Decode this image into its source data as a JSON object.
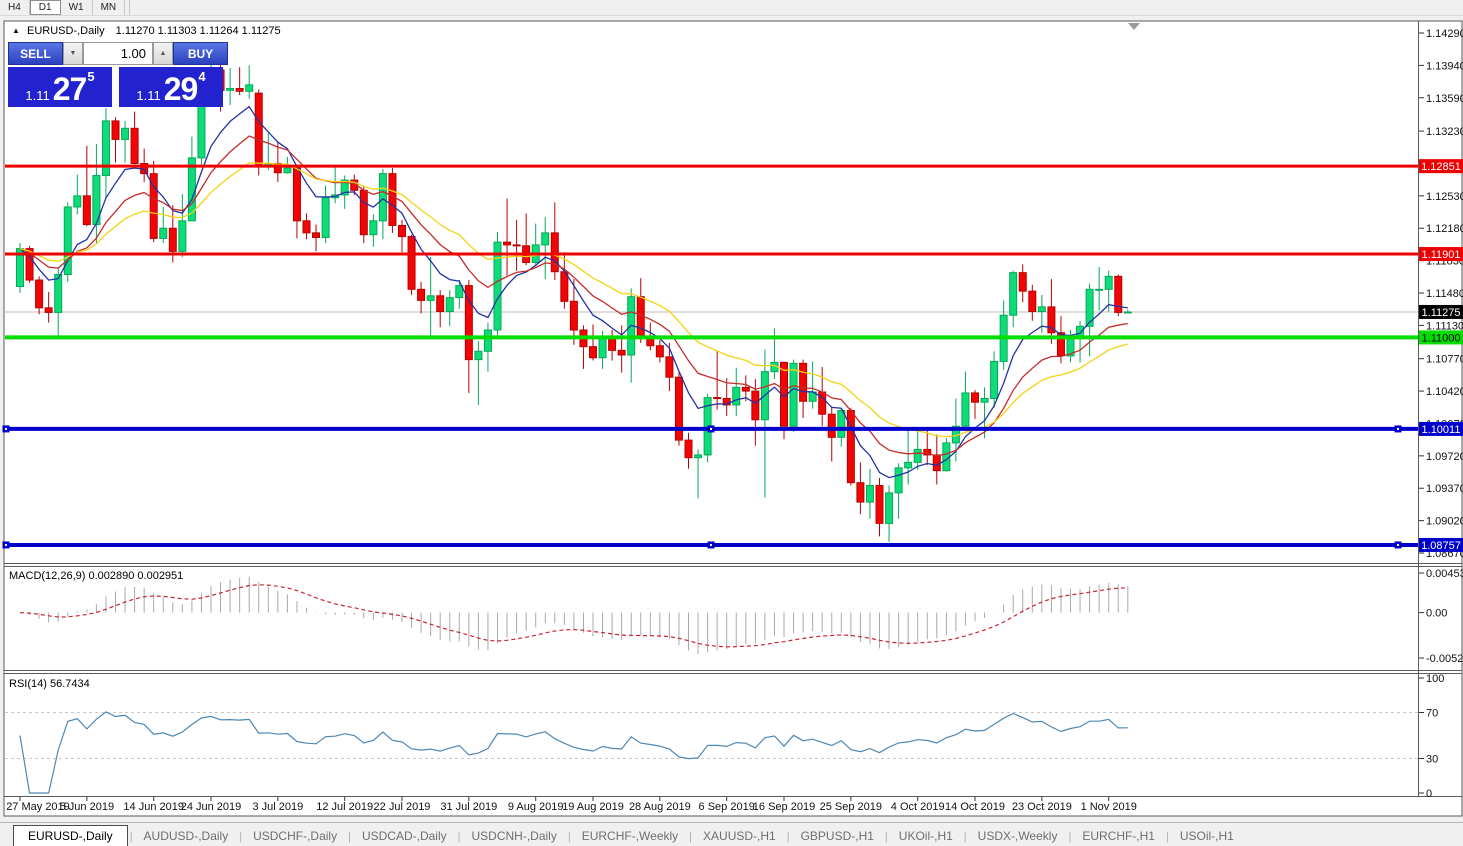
{
  "toolbar": {
    "buttons": [
      "H4",
      "D1",
      "W1",
      "MN"
    ],
    "active": "D1"
  },
  "chart": {
    "title_symbol": "EURUSD-,Daily",
    "title_ohlc": "1.11270 1.11303 1.11264 1.11275",
    "trade_widget": {
      "sell_label": "SELL",
      "buy_label": "BUY",
      "volume": "1.00",
      "sell_price_prefix": "1.11",
      "sell_price_big": "27",
      "sell_price_sup": "5",
      "buy_price_prefix": "1.11",
      "buy_price_big": "29",
      "buy_price_sup": "4"
    }
  },
  "icons": {
    "collapse": "▲",
    "spin_up": "▲",
    "spin_down": "▼",
    "tab_scroll_left": "◄",
    "tab_scroll_right": "►"
  },
  "chart_data": {
    "type": "candlestick",
    "symbol": "EURUSD",
    "timeframe": "Daily",
    "title": "EURUSD-,Daily",
    "colors": {
      "candle_up_fill": "#0edc78",
      "candle_up_stroke": "#05a858",
      "candle_dn_fill": "#f20505",
      "candle_dn_stroke": "#b80000",
      "ma_fast": "#2233a6",
      "ma_mid": "#c42b2b",
      "ma_slow": "#f5d312",
      "current_price_line": "#bdbdbd",
      "macd_histogram": "#a8a8a8",
      "macd_signal": "#cc2233",
      "rsi_line": "#4d87b5"
    },
    "y_axis_ticks": [
      {
        "label": "1.14290",
        "p": 1.1429
      },
      {
        "label": "1.13940",
        "p": 1.1394
      },
      {
        "label": "1.13590",
        "p": 1.1359
      },
      {
        "label": "1.13230",
        "p": 1.1323
      },
      {
        "label": "1.12530",
        "p": 1.1253
      },
      {
        "label": "1.12180",
        "p": 1.1218
      },
      {
        "label": "1.11830",
        "p": 1.1183
      },
      {
        "label": "1.11480",
        "p": 1.1148
      },
      {
        "label": "1.11130",
        "p": 1.1113
      },
      {
        "label": "1.10770",
        "p": 1.1077
      },
      {
        "label": "1.10420",
        "p": 1.1042
      },
      {
        "label": "1.10070",
        "p": 1.1007
      },
      {
        "label": "1.09720",
        "p": 1.0972
      },
      {
        "label": "1.09370",
        "p": 1.0937
      },
      {
        "label": "1.09020",
        "p": 1.0902
      },
      {
        "label": "1.08670",
        "p": 1.0867
      }
    ],
    "hlines": [
      {
        "price": 1.12851,
        "label": "1.12851",
        "color": "#ee0000",
        "width": 3,
        "selected": false
      },
      {
        "price": 1.11901,
        "label": "1.11901",
        "color": "#ee0000",
        "width": 3,
        "selected": false
      },
      {
        "price": 1.11,
        "label": "1.11000",
        "color": "#00dd00",
        "width": 4,
        "selected": false,
        "label_fg": "#000"
      },
      {
        "price": 1.10011,
        "label": "1.10011",
        "color": "#0000cc",
        "width": 4,
        "selected": true
      },
      {
        "price": 1.08757,
        "label": "1.08757",
        "color": "#0000cc",
        "width": 4,
        "selected": true
      }
    ],
    "current_price": {
      "label": "1.11275",
      "price": 1.11275
    },
    "x_ticks": [
      {
        "label": "27 May 2019",
        "i": 0
      },
      {
        "label": "5 Jun 2019",
        "i": 7
      },
      {
        "label": "14 Jun 2019",
        "i": 14
      },
      {
        "label": "24 Jun 2019",
        "i": 20
      },
      {
        "label": "3 Jul 2019",
        "i": 27
      },
      {
        "label": "12 Jul 2019",
        "i": 34
      },
      {
        "label": "22 Jul 2019",
        "i": 40
      },
      {
        "label": "31 Jul 2019",
        "i": 47
      },
      {
        "label": "9 Aug 2019",
        "i": 54
      },
      {
        "label": "19 Aug 2019",
        "i": 60
      },
      {
        "label": "28 Aug 2019",
        "i": 67
      },
      {
        "label": "6 Sep 2019",
        "i": 74
      },
      {
        "label": "16 Sep 2019",
        "i": 80
      },
      {
        "label": "25 Sep 2019",
        "i": 87
      },
      {
        "label": "4 Oct 2019",
        "i": 94
      },
      {
        "label": "14 Oct 2019",
        "i": 100
      },
      {
        "label": "23 Oct 2019",
        "i": 107
      },
      {
        "label": "1 Nov 2019",
        "i": 114
      }
    ],
    "candles": [
      [
        1.1155,
        1.1202,
        1.1148,
        1.1196
      ],
      [
        1.1196,
        1.1199,
        1.1159,
        1.1162
      ],
      [
        1.1162,
        1.1166,
        1.1125,
        1.1132
      ],
      [
        1.1132,
        1.1149,
        1.1116,
        1.1127
      ],
      [
        1.1127,
        1.1176,
        1.1101,
        1.1168
      ],
      [
        1.1168,
        1.1246,
        1.116,
        1.1241
      ],
      [
        1.1241,
        1.1276,
        1.1233,
        1.1253
      ],
      [
        1.1253,
        1.1307,
        1.122,
        1.1222
      ],
      [
        1.1222,
        1.1309,
        1.1201,
        1.1275
      ],
      [
        1.1275,
        1.1348,
        1.1251,
        1.1334
      ],
      [
        1.1334,
        1.1338,
        1.1289,
        1.1314
      ],
      [
        1.1314,
        1.1334,
        1.1289,
        1.1326
      ],
      [
        1.1326,
        1.1344,
        1.1282,
        1.1288
      ],
      [
        1.1288,
        1.1304,
        1.1268,
        1.1277
      ],
      [
        1.1277,
        1.1291,
        1.1203,
        1.1207
      ],
      [
        1.1207,
        1.1241,
        1.1202,
        1.1218
      ],
      [
        1.1218,
        1.1243,
        1.1181,
        1.1193
      ],
      [
        1.1193,
        1.1255,
        1.1187,
        1.1226
      ],
      [
        1.1226,
        1.1317,
        1.1226,
        1.1294
      ],
      [
        1.1294,
        1.1378,
        1.1287,
        1.1368
      ],
      [
        1.1368,
        1.1396,
        1.1362,
        1.1389
      ],
      [
        1.1389,
        1.1395,
        1.1344,
        1.1367
      ],
      [
        1.1367,
        1.1391,
        1.1351,
        1.1369
      ],
      [
        1.1369,
        1.1392,
        1.1362,
        1.1366
      ],
      [
        1.1366,
        1.1394,
        1.1358,
        1.1373
      ],
      [
        1.1364,
        1.1368,
        1.1275,
        1.1285
      ],
      [
        1.1285,
        1.1322,
        1.1281,
        1.1288
      ],
      [
        1.1288,
        1.1312,
        1.1268,
        1.1278
      ],
      [
        1.1278,
        1.1295,
        1.1277,
        1.1283
      ],
      [
        1.1283,
        1.1287,
        1.1207,
        1.1226
      ],
      [
        1.1226,
        1.1234,
        1.1206,
        1.1213
      ],
      [
        1.1213,
        1.1222,
        1.1193,
        1.1208
      ],
      [
        1.1208,
        1.1264,
        1.1202,
        1.1251
      ],
      [
        1.1251,
        1.1285,
        1.1245,
        1.1254
      ],
      [
        1.1254,
        1.1275,
        1.1239,
        1.127
      ],
      [
        1.127,
        1.1276,
        1.1254,
        1.1259
      ],
      [
        1.1259,
        1.1263,
        1.1202,
        1.1211
      ],
      [
        1.1211,
        1.1233,
        1.1198,
        1.1226
      ],
      [
        1.1226,
        1.1282,
        1.1206,
        1.1277
      ],
      [
        1.1277,
        1.1283,
        1.1213,
        1.1221
      ],
      [
        1.1221,
        1.1227,
        1.1192,
        1.1209
      ],
      [
        1.1209,
        1.1211,
        1.1146,
        1.1152
      ],
      [
        1.1152,
        1.116,
        1.1126,
        1.114
      ],
      [
        1.114,
        1.1187,
        1.1101,
        1.1145
      ],
      [
        1.1145,
        1.1151,
        1.1111,
        1.1128
      ],
      [
        1.1128,
        1.1151,
        1.1112,
        1.1143
      ],
      [
        1.1143,
        1.1162,
        1.1131,
        1.1156
      ],
      [
        1.1156,
        1.1162,
        1.104,
        1.1076
      ],
      [
        1.1076,
        1.1096,
        1.1027,
        1.1085
      ],
      [
        1.1085,
        1.1116,
        1.1063,
        1.1108
      ],
      [
        1.1108,
        1.1214,
        1.1101,
        1.1203
      ],
      [
        1.1203,
        1.125,
        1.1167,
        1.12
      ],
      [
        1.12,
        1.1227,
        1.1172,
        1.1199
      ],
      [
        1.1199,
        1.1234,
        1.1178,
        1.1181
      ],
      [
        1.1181,
        1.1223,
        1.1178,
        1.12
      ],
      [
        1.12,
        1.123,
        1.1163,
        1.1213
      ],
      [
        1.1213,
        1.1246,
        1.1162,
        1.1171
      ],
      [
        1.1171,
        1.1192,
        1.1131,
        1.1139
      ],
      [
        1.1139,
        1.1163,
        1.1092,
        1.1108
      ],
      [
        1.1108,
        1.1113,
        1.1066,
        1.109
      ],
      [
        1.109,
        1.1114,
        1.1075,
        1.1078
      ],
      [
        1.1078,
        1.1107,
        1.1066,
        1.11
      ],
      [
        1.11,
        1.1108,
        1.1075,
        1.1086
      ],
      [
        1.1086,
        1.1113,
        1.1062,
        1.1081
      ],
      [
        1.1081,
        1.1153,
        1.1051,
        1.1144
      ],
      [
        1.1144,
        1.1164,
        1.1094,
        1.1101
      ],
      [
        1.1101,
        1.1116,
        1.1086,
        1.1091
      ],
      [
        1.1091,
        1.1097,
        1.1073,
        1.1079
      ],
      [
        1.1079,
        1.1094,
        1.1042,
        1.1057
      ],
      [
        1.1057,
        1.1062,
        1.0983,
        1.0989
      ],
      [
        1.0989,
        1.0997,
        1.0958,
        1.097
      ],
      [
        1.097,
        1.0979,
        1.0926,
        1.0973
      ],
      [
        1.0973,
        1.1039,
        1.0965,
        1.1035
      ],
      [
        1.1035,
        1.1085,
        1.1022,
        1.1034
      ],
      [
        1.1034,
        1.1056,
        1.1015,
        1.1027
      ],
      [
        1.1027,
        1.1067,
        1.1015,
        1.1046
      ],
      [
        1.1046,
        1.1059,
        1.1031,
        1.1042
      ],
      [
        1.1042,
        1.1055,
        1.0983,
        1.1011
      ],
      [
        1.1011,
        1.1087,
        1.0927,
        1.1063
      ],
      [
        1.1063,
        1.111,
        1.1055,
        1.1073
      ],
      [
        1.1073,
        1.1074,
        1.099,
        1.1004
      ],
      [
        1.1004,
        1.1076,
        1.0998,
        1.1072
      ],
      [
        1.1072,
        1.1076,
        1.1013,
        1.1031
      ],
      [
        1.1031,
        1.1074,
        1.1023,
        1.1041
      ],
      [
        1.1041,
        1.1068,
        1.1004,
        1.1017
      ],
      [
        1.1017,
        1.1025,
        1.0966,
        1.0992
      ],
      [
        1.0992,
        1.1024,
        1.0982,
        1.1021
      ],
      [
        1.1021,
        1.1024,
        1.094,
        1.0943
      ],
      [
        1.0943,
        1.0965,
        1.0909,
        1.0922
      ],
      [
        1.0922,
        1.0958,
        1.0904,
        1.094
      ],
      [
        1.094,
        1.0948,
        1.0885,
        1.0899
      ],
      [
        1.0899,
        1.094,
        1.0879,
        1.0932
      ],
      [
        1.0932,
        1.0964,
        1.0904,
        1.0959
      ],
      [
        1.0959,
        1.0999,
        1.0941,
        1.0965
      ],
      [
        1.0965,
        1.0999,
        1.0957,
        1.0979
      ],
      [
        1.0979,
        1.1,
        1.0962,
        1.0973
      ],
      [
        1.0973,
        1.0995,
        1.0941,
        1.0956
      ],
      [
        1.0956,
        1.0991,
        1.0955,
        1.0986
      ],
      [
        1.0986,
        1.1034,
        1.0966,
        1.1004
      ],
      [
        1.1004,
        1.1063,
        1.1002,
        1.104
      ],
      [
        1.104,
        1.1043,
        1.1012,
        1.103
      ],
      [
        1.103,
        1.1046,
        1.0991,
        1.1034
      ],
      [
        1.1034,
        1.1085,
        1.1024,
        1.1074
      ],
      [
        1.1074,
        1.114,
        1.1065,
        1.1124
      ],
      [
        1.1124,
        1.1172,
        1.1111,
        1.117
      ],
      [
        1.117,
        1.1179,
        1.1138,
        1.115
      ],
      [
        1.115,
        1.1157,
        1.1118,
        1.1128
      ],
      [
        1.1128,
        1.1146,
        1.1105,
        1.1133
      ],
      [
        1.1133,
        1.1163,
        1.1093,
        1.1105
      ],
      [
        1.1105,
        1.1123,
        1.1072,
        1.108
      ],
      [
        1.108,
        1.1108,
        1.1073,
        1.11
      ],
      [
        1.11,
        1.1118,
        1.1073,
        1.1112
      ],
      [
        1.1112,
        1.1158,
        1.108,
        1.1152
      ],
      [
        1.1152,
        1.1176,
        1.1129,
        1.1152
      ],
      [
        1.1152,
        1.1172,
        1.1128,
        1.1166
      ],
      [
        1.1166,
        1.1168,
        1.1123,
        1.1127
      ],
      [
        1.1127,
        1.11303,
        1.11264,
        1.11275
      ]
    ],
    "ma_lines": [
      {
        "name": "ma-fast",
        "period": 7,
        "color": "#2233a6"
      },
      {
        "name": "ma-mid",
        "period": 14,
        "color": "#c42b2b"
      },
      {
        "name": "ma-slow",
        "period": 24,
        "color": "#f5d312"
      }
    ],
    "macd": {
      "text": "MACD(12,26,9) 0.002890 0.002951",
      "params": [
        12,
        26,
        9
      ],
      "axis": [
        {
          "label": "0.004536",
          "v": 0.004536
        },
        {
          "label": "0.00",
          "v": 0
        },
        {
          "label": "-0.005205",
          "v": -0.005205
        }
      ],
      "range": [
        -0.005205,
        0.004536
      ]
    },
    "rsi": {
      "text": "RSI(14) 56.7434",
      "period": 14,
      "axis": [
        {
          "label": "100",
          "v": 100
        },
        {
          "label": "70",
          "v": 70
        },
        {
          "label": "30",
          "v": 30
        },
        {
          "label": "0",
          "v": 0
        }
      ],
      "levels": [
        70,
        30
      ]
    }
  },
  "tabs": {
    "active": "EURUSD-,Daily",
    "items": [
      "EURUSD-,Daily",
      "AUDUSD-,Daily",
      "USDCHF-,Daily",
      "USDCAD-,Daily",
      "USDCNH-,Daily",
      "EURCHF-,Weekly",
      "XAUUSD-,H1",
      "GBPUSD-,H1",
      "UKOil-,H1",
      "USDX-,Weekly",
      "EURCHF-,H1",
      "USOil-,H1"
    ]
  }
}
